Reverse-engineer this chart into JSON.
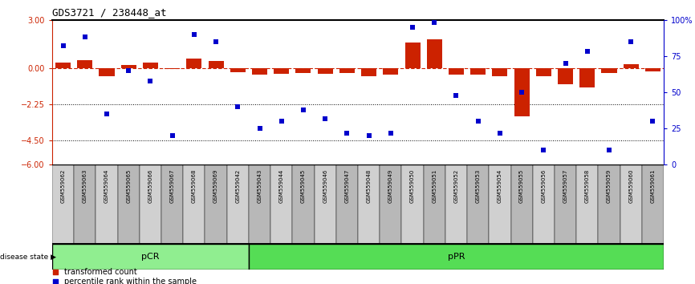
{
  "title": "GDS3721 / 238448_at",
  "samples": [
    "GSM559062",
    "GSM559063",
    "GSM559064",
    "GSM559065",
    "GSM559066",
    "GSM559067",
    "GSM559068",
    "GSM559069",
    "GSM559042",
    "GSM559043",
    "GSM559044",
    "GSM559045",
    "GSM559046",
    "GSM559047",
    "GSM559048",
    "GSM559049",
    "GSM559050",
    "GSM559051",
    "GSM559052",
    "GSM559053",
    "GSM559054",
    "GSM559055",
    "GSM559056",
    "GSM559057",
    "GSM559058",
    "GSM559059",
    "GSM559060",
    "GSM559061"
  ],
  "bar_values": [
    0.35,
    0.5,
    -0.5,
    0.2,
    0.35,
    -0.05,
    0.6,
    0.45,
    -0.25,
    -0.4,
    -0.35,
    -0.3,
    -0.35,
    -0.3,
    -0.5,
    -0.4,
    1.6,
    1.8,
    -0.4,
    -0.4,
    -0.5,
    -3.0,
    -0.5,
    -1.0,
    -1.2,
    -0.3,
    0.25,
    -0.2
  ],
  "percentile_values": [
    82,
    88,
    35,
    65,
    58,
    20,
    90,
    85,
    40,
    25,
    30,
    38,
    32,
    22,
    20,
    22,
    95,
    98,
    48,
    30,
    22,
    50,
    10,
    70,
    78,
    10,
    85,
    30
  ],
  "pCR_count": 9,
  "pPR_count": 19,
  "ylim_left": [
    -6,
    3
  ],
  "ylim_right": [
    0,
    100
  ],
  "yticks_left": [
    3,
    0,
    -2.25,
    -4.5,
    -6
  ],
  "yticks_right": [
    100,
    75,
    50,
    25,
    0
  ],
  "hlines": [
    -2.25,
    -4.5
  ],
  "bar_color": "#CC2200",
  "dot_color": "#0000CC",
  "zero_line_color": "#CC2200",
  "background_color": "#FFFFFF",
  "pCR_color": "#90EE90",
  "pPR_color": "#55DD55",
  "legend_bar_label": "transformed count",
  "legend_dot_label": "percentile rank within the sample",
  "disease_state_label": "disease state"
}
